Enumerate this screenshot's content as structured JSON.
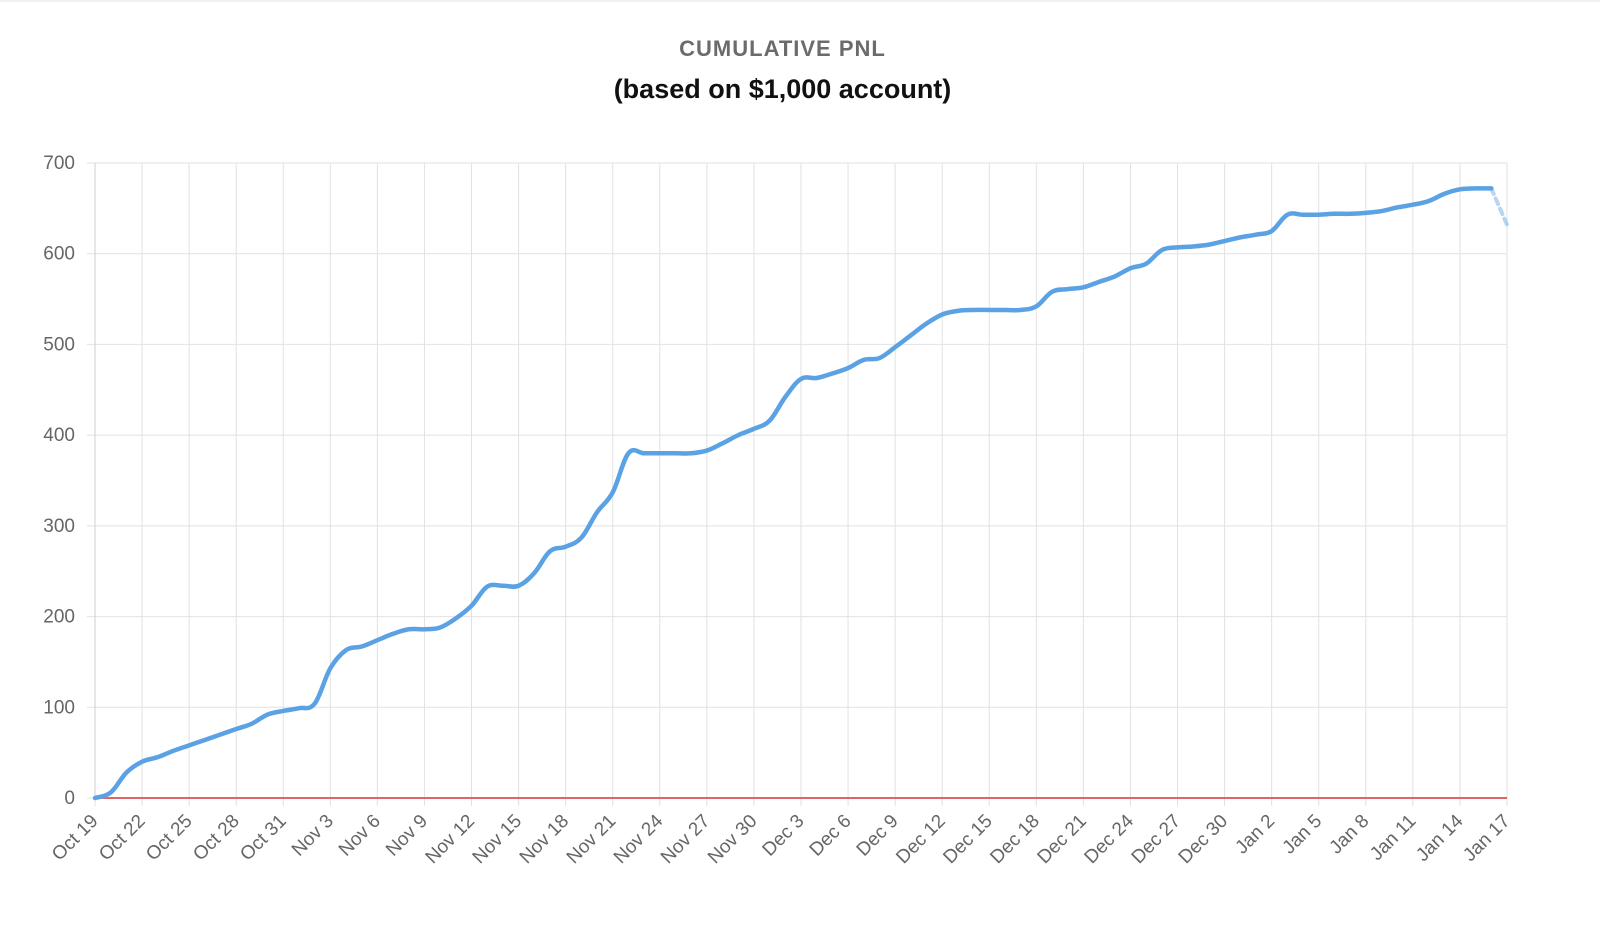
{
  "chart_data": {
    "type": "line",
    "title": "CUMULATIVE PNL",
    "subtitle": "(based on $1,000 account)",
    "xlabel": "",
    "ylabel": "",
    "ylim": [
      0,
      700
    ],
    "yticks": [
      0,
      100,
      200,
      300,
      400,
      500,
      600,
      700
    ],
    "x_range": [
      "Oct 19",
      "Jan 17"
    ],
    "xticks": [
      "Oct 19",
      "Oct 22",
      "Oct 25",
      "Oct 28",
      "Oct 31",
      "Nov 3",
      "Nov 6",
      "Nov 9",
      "Nov 12",
      "Nov 15",
      "Nov 18",
      "Nov 21",
      "Nov 24",
      "Nov 27",
      "Nov 30",
      "Dec 3",
      "Dec 6",
      "Dec 9",
      "Dec 12",
      "Dec 15",
      "Dec 18",
      "Dec 21",
      "Dec 24",
      "Dec 27",
      "Dec 30",
      "Jan 2",
      "Jan 5",
      "Jan 8",
      "Jan 11",
      "Jan 14",
      "Jan 17"
    ],
    "grid": true,
    "legend": "none",
    "series": [
      {
        "color": "#5aa2e4",
        "points": [
          [
            "Oct 19",
            0
          ],
          [
            "Oct 20",
            6
          ],
          [
            "Oct 21",
            28
          ],
          [
            "Oct 22",
            40
          ],
          [
            "Oct 23",
            45
          ],
          [
            "Oct 24",
            52
          ],
          [
            "Oct 25",
            58
          ],
          [
            "Oct 26",
            64
          ],
          [
            "Oct 27",
            70
          ],
          [
            "Oct 28",
            76
          ],
          [
            "Oct 29",
            82
          ],
          [
            "Oct 30",
            92
          ],
          [
            "Oct 31",
            96
          ],
          [
            "Nov 1",
            99
          ],
          [
            "Nov 2",
            104
          ],
          [
            "Nov 3",
            143
          ],
          [
            "Nov 4",
            163
          ],
          [
            "Nov 5",
            167
          ],
          [
            "Nov 6",
            174
          ],
          [
            "Nov 7",
            181
          ],
          [
            "Nov 8",
            186
          ],
          [
            "Nov 9",
            186
          ],
          [
            "Nov 10",
            188
          ],
          [
            "Nov 11",
            198
          ],
          [
            "Nov 12",
            212
          ],
          [
            "Nov 13",
            233
          ],
          [
            "Nov 14",
            234
          ],
          [
            "Nov 15",
            234
          ],
          [
            "Nov 16",
            248
          ],
          [
            "Nov 17",
            272
          ],
          [
            "Nov 18",
            277
          ],
          [
            "Nov 19",
            287
          ],
          [
            "Nov 20",
            315
          ],
          [
            "Nov 21",
            337
          ],
          [
            "Nov 22",
            380
          ],
          [
            "Nov 23",
            380
          ],
          [
            "Nov 24",
            380
          ],
          [
            "Nov 25",
            380
          ],
          [
            "Nov 26",
            380
          ],
          [
            "Nov 27",
            383
          ],
          [
            "Nov 28",
            391
          ],
          [
            "Nov 29",
            400
          ],
          [
            "Nov 30",
            407
          ],
          [
            "Dec 1",
            416
          ],
          [
            "Dec 2",
            442
          ],
          [
            "Dec 3",
            462
          ],
          [
            "Dec 4",
            463
          ],
          [
            "Dec 5",
            468
          ],
          [
            "Dec 6",
            474
          ],
          [
            "Dec 7",
            483
          ],
          [
            "Dec 8",
            485
          ],
          [
            "Dec 9",
            497
          ],
          [
            "Dec 10",
            510
          ],
          [
            "Dec 11",
            523
          ],
          [
            "Dec 12",
            533
          ],
          [
            "Dec 13",
            537
          ],
          [
            "Dec 14",
            538
          ],
          [
            "Dec 15",
            538
          ],
          [
            "Dec 16",
            538
          ],
          [
            "Dec 17",
            538
          ],
          [
            "Dec 18",
            542
          ],
          [
            "Dec 19",
            558
          ],
          [
            "Dec 20",
            561
          ],
          [
            "Dec 21",
            563
          ],
          [
            "Dec 22",
            569
          ],
          [
            "Dec 23",
            575
          ],
          [
            "Dec 24",
            584
          ],
          [
            "Dec 25",
            589
          ],
          [
            "Dec 26",
            604
          ],
          [
            "Dec 27",
            607
          ],
          [
            "Dec 28",
            608
          ],
          [
            "Dec 29",
            610
          ],
          [
            "Dec 30",
            614
          ],
          [
            "Dec 31",
            618
          ],
          [
            "Jan 1",
            621
          ],
          [
            "Jan 2",
            625
          ],
          [
            "Jan 3",
            643
          ],
          [
            "Jan 4",
            643
          ],
          [
            "Jan 5",
            643
          ],
          [
            "Jan 6",
            644
          ],
          [
            "Jan 7",
            644
          ],
          [
            "Jan 8",
            645
          ],
          [
            "Jan 9",
            647
          ],
          [
            "Jan 10",
            651
          ],
          [
            "Jan 11",
            654
          ],
          [
            "Jan 12",
            658
          ],
          [
            "Jan 13",
            666
          ],
          [
            "Jan 14",
            671
          ],
          [
            "Jan 15",
            672
          ],
          [
            "Jan 16",
            672
          ],
          [
            "Jan 17",
            632
          ]
        ],
        "dashed_last_segment": true
      }
    ],
    "reference_line": {
      "y": 0,
      "color": "#e06666"
    }
  }
}
